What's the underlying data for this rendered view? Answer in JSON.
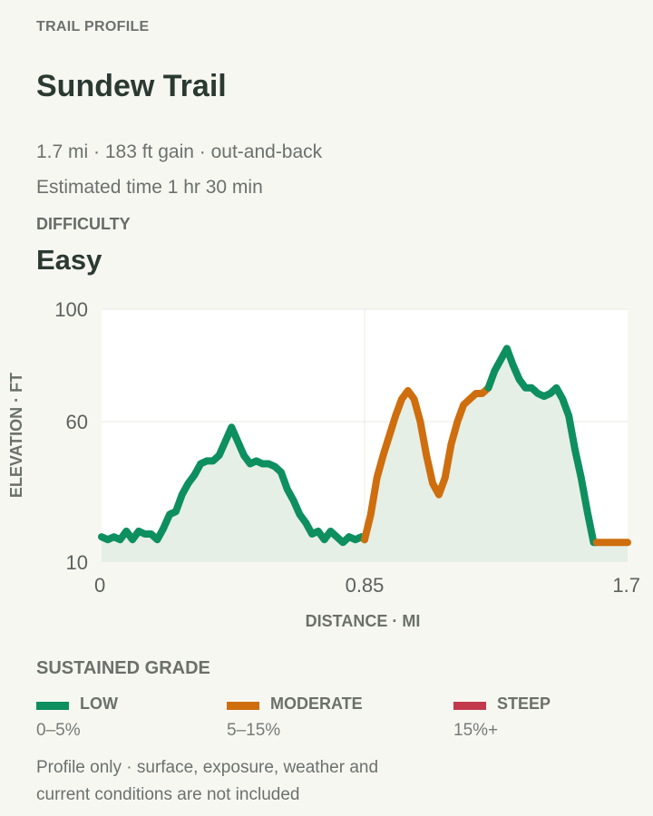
{
  "header": {
    "eyebrow": "TRAIL PROFILE",
    "title": "Sundew Trail",
    "meta_line": "1.7 mi · 183 ft gain · out-and-back",
    "time_line": "Estimated time 1 hr 30 min",
    "difficulty_label": "DIFFICULTY",
    "difficulty_value": "Easy"
  },
  "chart_data": {
    "type": "area",
    "xlabel": "DISTANCE · MI",
    "ylabel": "ELEVATION · FT",
    "xlim": [
      0,
      1.7
    ],
    "ylim": [
      10,
      100
    ],
    "x_ticks": [
      {
        "value": 0,
        "label": "0"
      },
      {
        "value": 0.85,
        "label": "0.85"
      },
      {
        "value": 1.7,
        "label": "1.7"
      }
    ],
    "y_ticks": [
      {
        "value": 10,
        "label": "10"
      },
      {
        "value": 60,
        "label": "60"
      },
      {
        "value": 100,
        "label": "100"
      }
    ],
    "grid": true,
    "x": [
      0.0,
      0.02,
      0.04,
      0.06,
      0.08,
      0.1,
      0.12,
      0.14,
      0.16,
      0.18,
      0.2,
      0.22,
      0.24,
      0.26,
      0.28,
      0.3,
      0.32,
      0.34,
      0.36,
      0.38,
      0.4,
      0.42,
      0.44,
      0.46,
      0.48,
      0.5,
      0.52,
      0.54,
      0.56,
      0.58,
      0.6,
      0.62,
      0.64,
      0.66,
      0.68,
      0.7,
      0.72,
      0.74,
      0.76,
      0.78,
      0.8,
      0.82,
      0.84,
      0.85,
      0.87,
      0.89,
      0.91,
      0.93,
      0.95,
      0.97,
      0.99,
      1.01,
      1.03,
      1.05,
      1.07,
      1.09,
      1.11,
      1.13,
      1.15,
      1.17,
      1.19,
      1.21,
      1.23,
      1.25,
      1.27,
      1.29,
      1.31,
      1.33,
      1.35,
      1.37,
      1.39,
      1.41,
      1.43,
      1.45,
      1.47,
      1.49,
      1.51,
      1.53,
      1.55,
      1.57,
      1.59,
      1.61,
      1.63,
      1.65,
      1.67,
      1.69,
      1.7
    ],
    "y": [
      19,
      18,
      19,
      18,
      21,
      18,
      21,
      20,
      20,
      18,
      22,
      27,
      28,
      34,
      38,
      41,
      45,
      46,
      46,
      48,
      53,
      58,
      53,
      48,
      45,
      46,
      45,
      45,
      44,
      42,
      36,
      32,
      27,
      24,
      20,
      21,
      18,
      21,
      19,
      17,
      19,
      18,
      19,
      18,
      27,
      40,
      48,
      55,
      62,
      68,
      71,
      68,
      60,
      48,
      38,
      34,
      40,
      52,
      60,
      66,
      68,
      70,
      70,
      72,
      78,
      82,
      86,
      80,
      75,
      72,
      72,
      70,
      69,
      70,
      72,
      68,
      62,
      50,
      40,
      28,
      17,
      17,
      17,
      17,
      17,
      17,
      17
    ],
    "grade_segments": [
      {
        "from": 0.0,
        "to": 0.85,
        "grade": "low"
      },
      {
        "from": 0.85,
        "to": 1.25,
        "grade": "moderate"
      },
      {
        "from": 1.25,
        "to": 1.6,
        "grade": "low"
      },
      {
        "from": 1.6,
        "to": 1.7,
        "grade": "moderate"
      }
    ]
  },
  "legend": {
    "title": "SUSTAINED GRADE",
    "items": [
      {
        "name": "LOW",
        "range": "0–5%",
        "color": "#0e8f5f"
      },
      {
        "name": "MODERATE",
        "range": "5–15%",
        "color": "#cf6e0e"
      },
      {
        "name": "STEEP",
        "range": "15%+",
        "color": "#c23a4b"
      }
    ]
  },
  "footnote": "Profile only · surface, exposure, weather and current conditions are not included"
}
